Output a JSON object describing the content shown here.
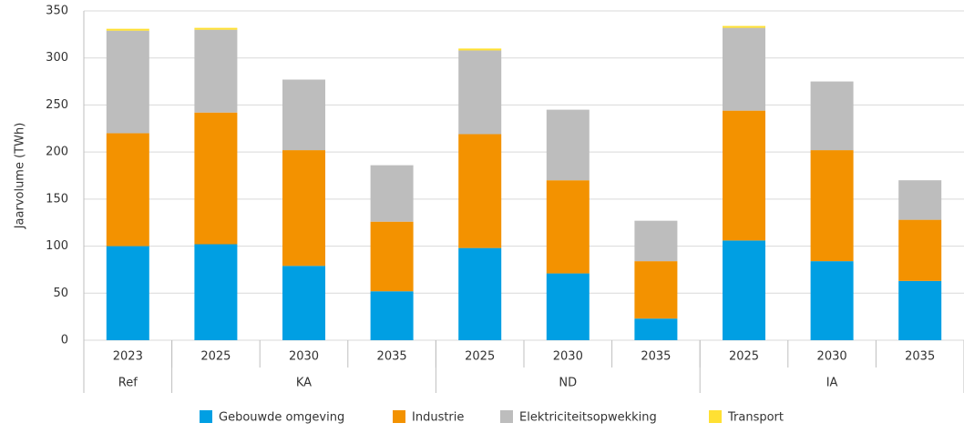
{
  "chart_data": {
    "type": "stacked-bar",
    "y_label": "Jaarvolume (TWh)",
    "categories": [
      "2023",
      "2025",
      "2030",
      "2035",
      "2025",
      "2030",
      "2035",
      "2025",
      "2030",
      "2035"
    ],
    "groups": [
      {
        "name": "Ref",
        "size": 1
      },
      {
        "name": "KA",
        "size": 3
      },
      {
        "name": "ND",
        "size": 3
      },
      {
        "name": "IA",
        "size": 3
      }
    ],
    "series": [
      {
        "name": "Gebouwde omgeving",
        "color": "#009fe3",
        "values": [
          100,
          102,
          79,
          52,
          98,
          71,
          23,
          106,
          84,
          63
        ]
      },
      {
        "name": "Industrie",
        "color": "#f39200",
        "values": [
          120,
          140,
          123,
          74,
          121,
          99,
          61,
          138,
          118,
          65
        ]
      },
      {
        "name": "Elektriciteitsopwekking",
        "color": "#bdbdbd",
        "values": [
          109,
          88,
          75,
          60,
          89,
          75,
          43,
          88,
          73,
          42
        ]
      },
      {
        "name": "Transport",
        "color": "#ffe033",
        "values": [
          2,
          2,
          0,
          0,
          2,
          0,
          0,
          2,
          0,
          0
        ]
      }
    ],
    "ylim": [
      0,
      350
    ],
    "yticks": [
      0,
      50,
      100,
      150,
      200,
      250,
      300,
      350
    ],
    "grid": true,
    "legend": "bottom"
  }
}
